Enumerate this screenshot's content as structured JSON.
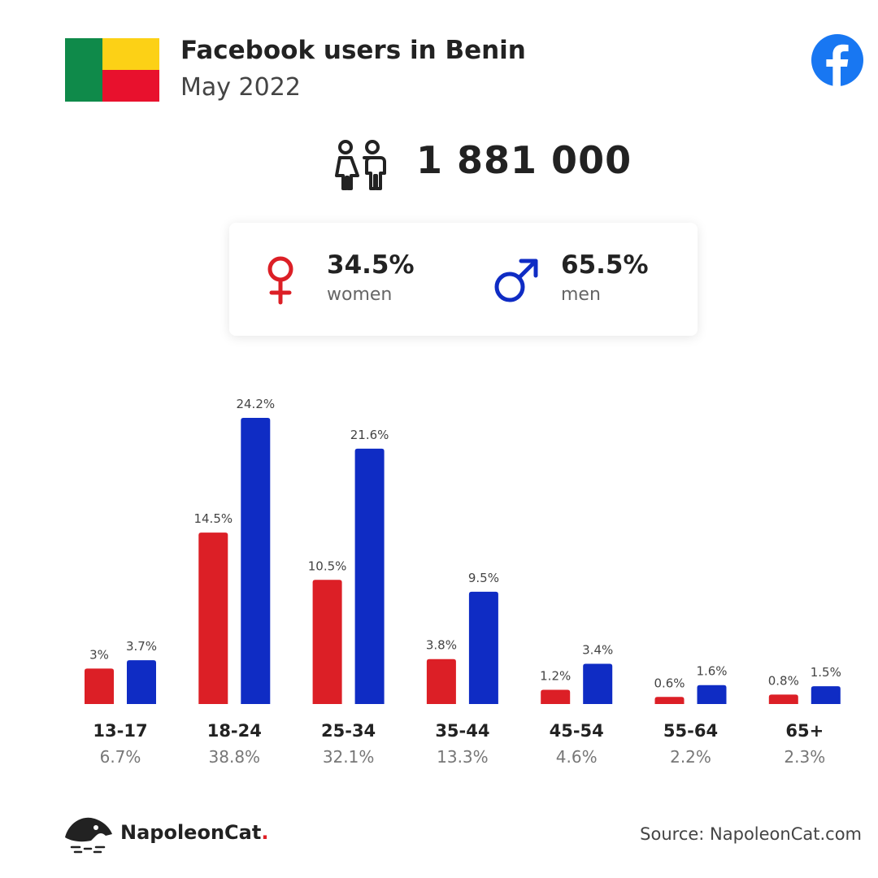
{
  "header": {
    "title": "Facebook users in Benin",
    "subtitle": "May 2022"
  },
  "flag": {
    "country": "Benin",
    "colors": [
      "#0f8a4a",
      "#fcd116",
      "#e8112d"
    ]
  },
  "total_users": "1 881 000",
  "gender": {
    "women_pct": "34.5%",
    "women_label": "women",
    "men_pct": "65.5%",
    "men_label": "men"
  },
  "chart_data": {
    "type": "bar",
    "categories": [
      "13-17",
      "18-24",
      "25-34",
      "35-44",
      "45-54",
      "55-64",
      "65+"
    ],
    "category_totals": [
      "6.7%",
      "38.8%",
      "32.1%",
      "13.3%",
      "4.6%",
      "2.2%",
      "2.3%"
    ],
    "series": [
      {
        "values": [
          3,
          14.5,
          10.5,
          3.8,
          1.2,
          0.6,
          0.8
        ],
        "labels": [
          "3%",
          "14.5%",
          "10.5%",
          "3.8%",
          "1.2%",
          "0.6%",
          "0.8%"
        ],
        "color": "#dc1f26"
      },
      {
        "values": [
          3.7,
          24.2,
          21.6,
          9.5,
          3.4,
          1.6,
          1.5
        ],
        "labels": [
          "3.7%",
          "24.2%",
          "21.6%",
          "9.5%",
          "3.4%",
          "1.6%",
          "1.5%"
        ],
        "color": "#0f2cc4"
      }
    ],
    "ylim": [
      0,
      24.2
    ],
    "grid": false
  },
  "footer": {
    "brand": "NapoleonCat",
    "brand_dot": ".",
    "source": "Source: NapoleonCat.com"
  },
  "icons": {
    "facebook": "facebook-icon",
    "people": "people-icon",
    "female": "female-icon",
    "male": "male-icon",
    "brand": "napoleoncat-logo-icon"
  }
}
